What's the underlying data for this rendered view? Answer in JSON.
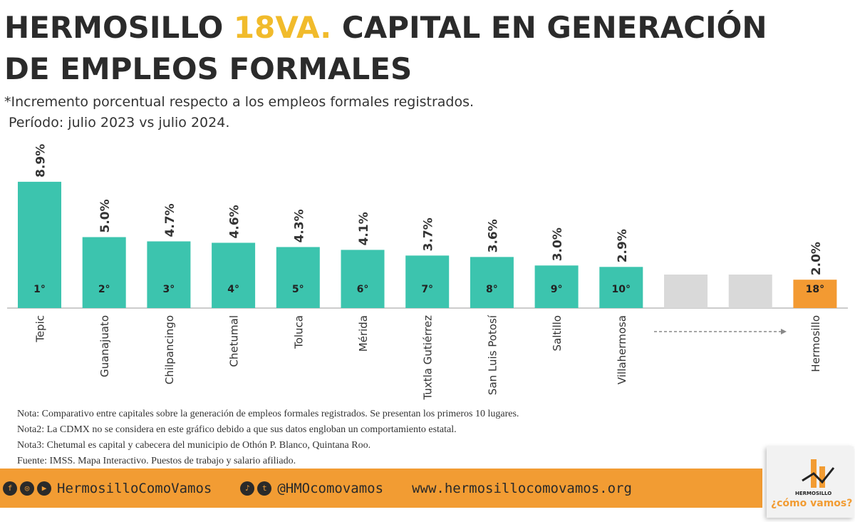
{
  "header": {
    "title_part1": "HERMOSILLO ",
    "title_highlight": "18VA.",
    "title_part2": " CAPITAL EN GENERACIÓN",
    "title_line2": "DE EMPLEOS FORMALES",
    "subtitle": "*Incremento porcentual respecto a los empleos formales registrados.",
    "period": "Período: julio 2023 vs julio 2024."
  },
  "chart_data": {
    "type": "bar",
    "categories": [
      "Tepic",
      "Guanajuato",
      "Chilpancingo",
      "Chetumal",
      "Toluca",
      "Mérida",
      "Tuxtla Gutiérrez",
      "San Luis Potosí",
      "Saltillo",
      "Villahermosa",
      "",
      "",
      "Hermosillo"
    ],
    "values": [
      8.9,
      5.0,
      4.7,
      4.6,
      4.3,
      4.1,
      3.7,
      3.6,
      3.0,
      2.9,
      null,
      null,
      2.0
    ],
    "value_labels": [
      "8.9%",
      "5.0%",
      "4.7%",
      "4.6%",
      "4.3%",
      "4.1%",
      "3.7%",
      "3.6%",
      "3.0%",
      "2.9%",
      "",
      "",
      "2.0%"
    ],
    "ranks": [
      "1°",
      "2°",
      "3°",
      "4°",
      "5°",
      "6°",
      "7°",
      "8°",
      "9°",
      "10°",
      "",
      "",
      "18°"
    ],
    "colors": {
      "top10": "#3cc4ae",
      "gap": "#d9d9d9",
      "highlight": "#f39a32"
    },
    "grid": false
  },
  "notes": [
    "Nota: Comparativo entre capitales sobre la generación de empleos formales registrados. Se presentan los primeros 10 lugares.",
    "Nota2: La CDMX no se considera en este gráfico debido a que sus datos engloban un comportamiento estatal.",
    "Nota3: Chetumal es capital y cabecera del municipio de Othón P. Blanco, Quintana Roo.",
    "Fuente: IMSS. Mapa Interactivo. Puestos de trabajo y salario afiliado."
  ],
  "footer": {
    "facebook_instagram_youtube": "HermosilloComoVamos",
    "tiktok_twitter": "@HMOcomovamos",
    "website": "www.hermosillocomovamos.org"
  },
  "logo": {
    "small": "HERMOSILLO",
    "big": "¿cómo vamos?"
  }
}
